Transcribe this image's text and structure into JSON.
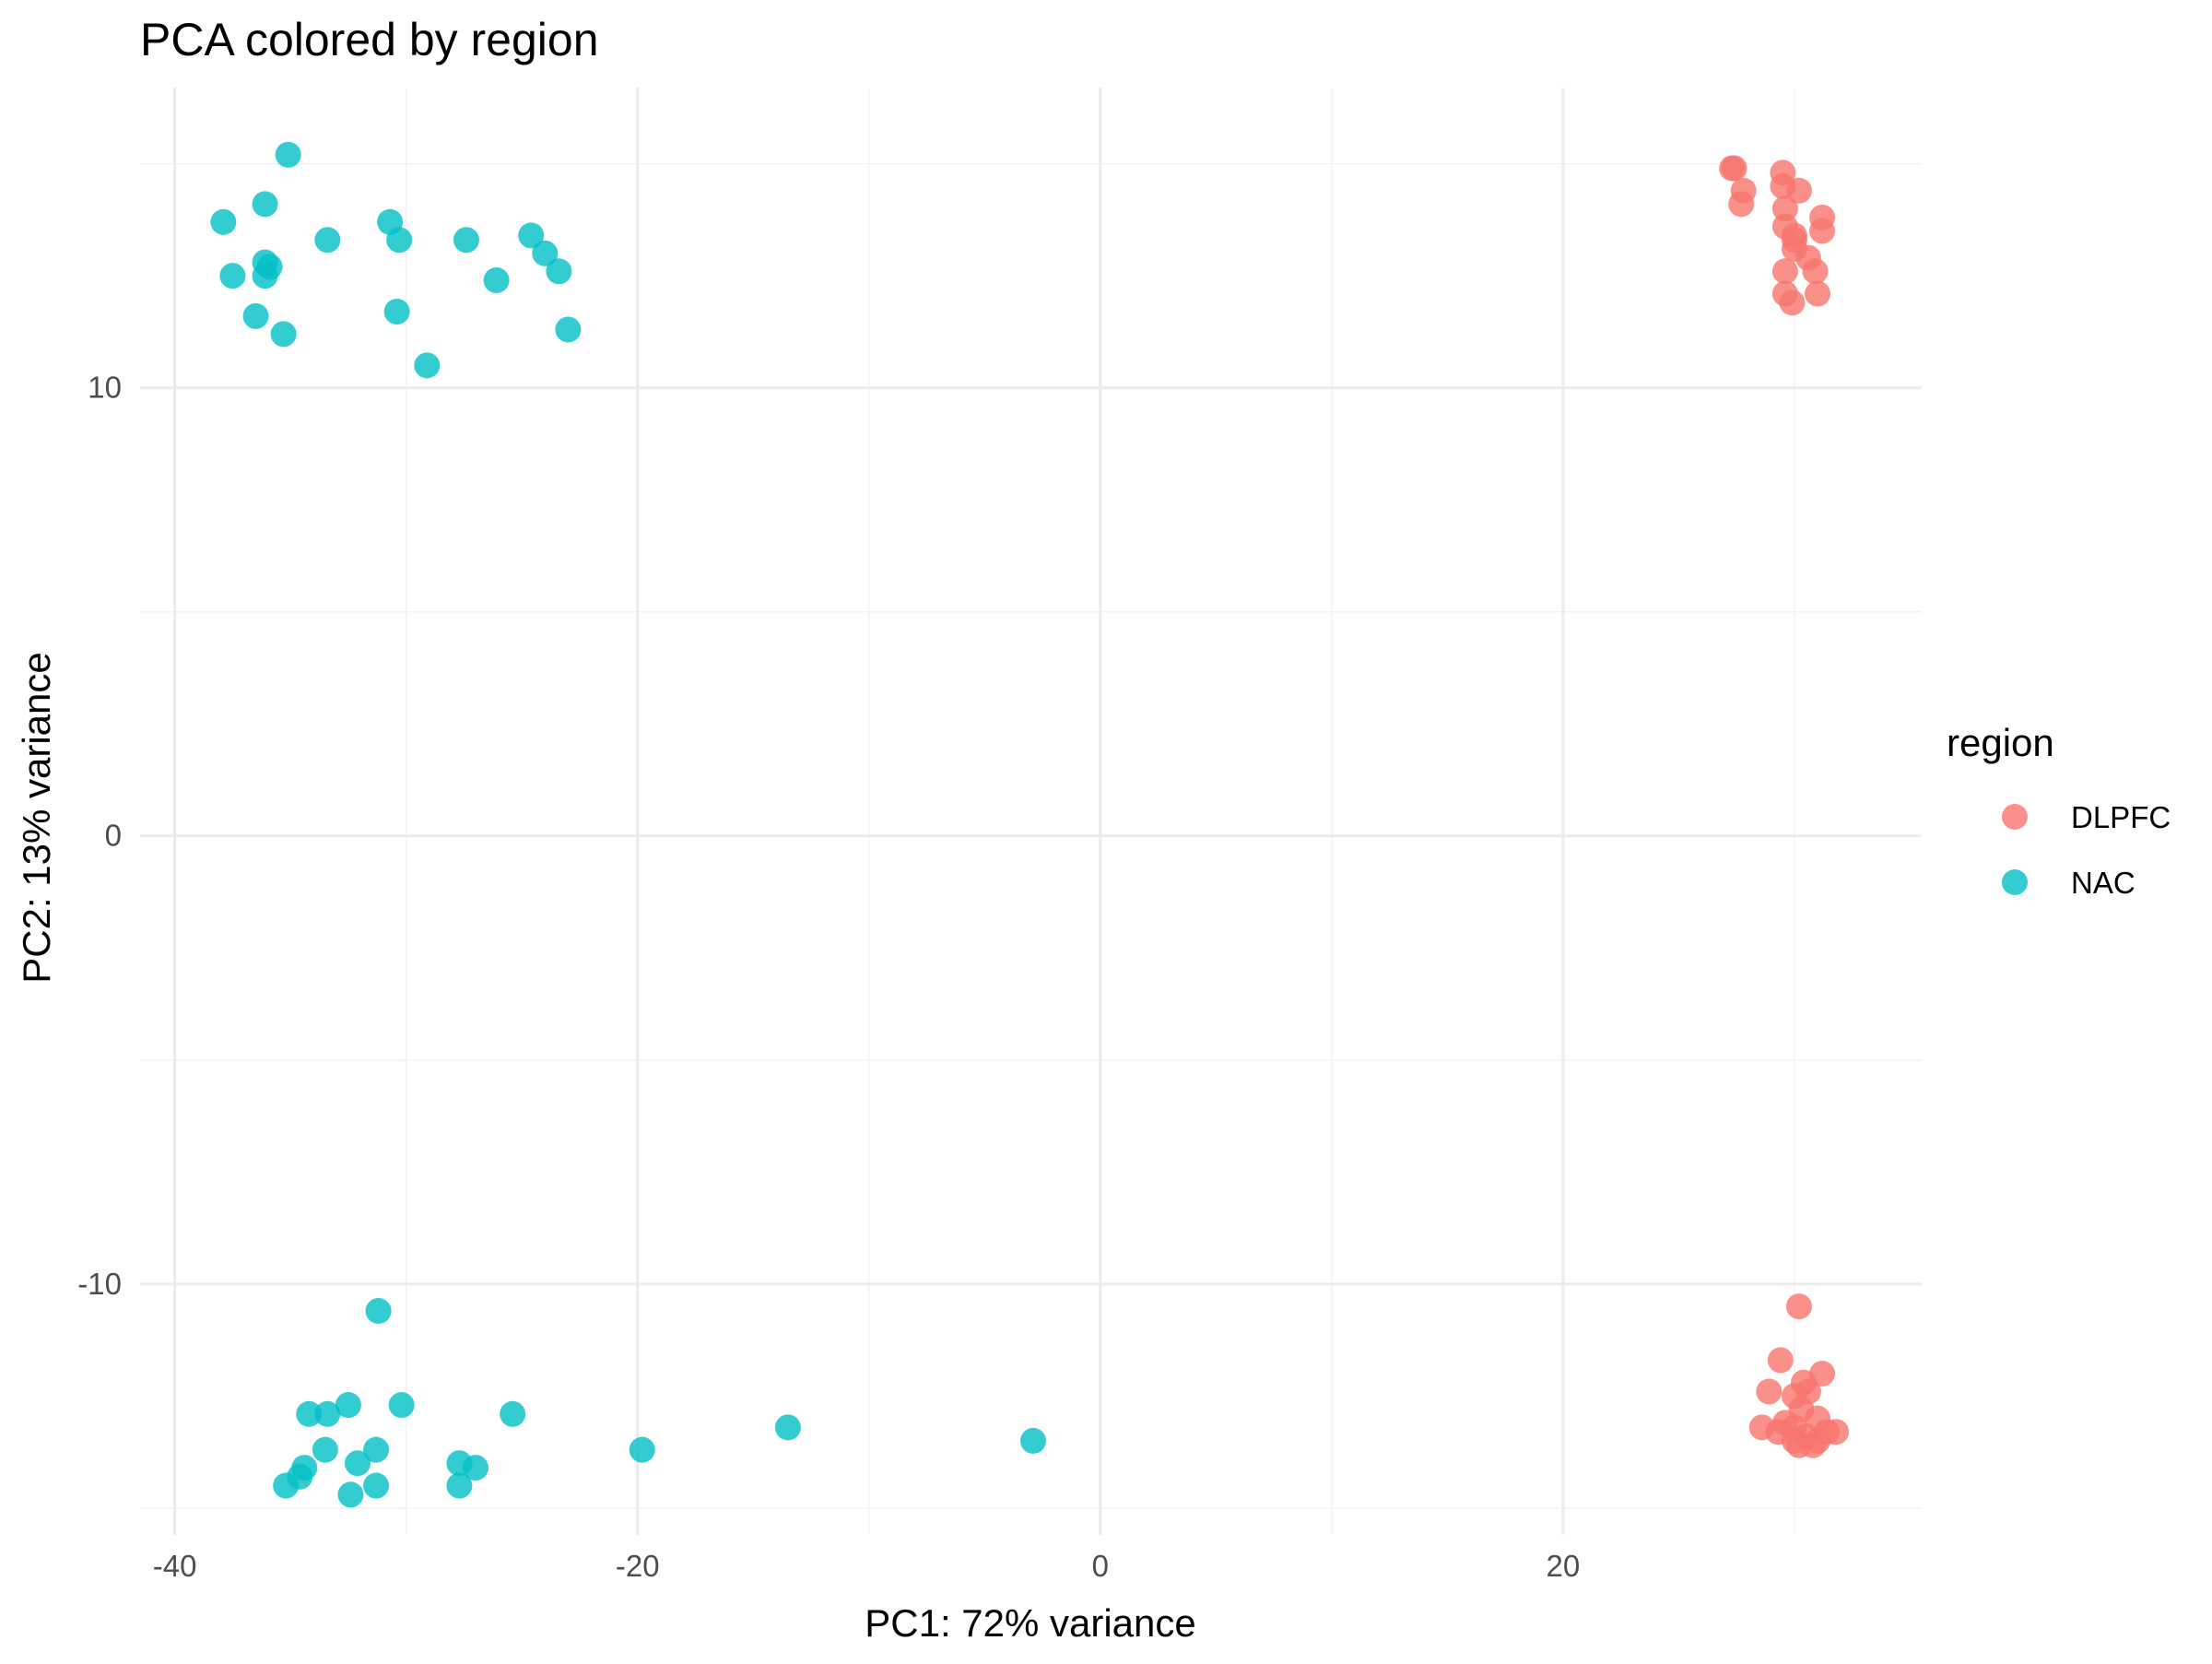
{
  "chart_data": {
    "type": "scatter",
    "title": "PCA colored by region",
    "xlabel": "PC1: 72% variance",
    "ylabel": "PC2: 13% variance",
    "xlim": [
      -41.5,
      35.5
    ],
    "ylim": [
      -15.6,
      16.7
    ],
    "x_ticks": [
      -40,
      -20,
      0,
      20
    ],
    "x_tick_labels": [
      "-40",
      "-20",
      "0",
      "20"
    ],
    "y_ticks": [
      -10,
      0,
      10
    ],
    "y_tick_labels": [
      "-10",
      "0",
      "10"
    ],
    "x_minor_ticks": [
      -30,
      -10,
      10,
      30
    ],
    "y_minor_ticks": [
      -15,
      -5,
      5,
      15
    ],
    "grid": true,
    "legend": {
      "title": "region",
      "position": "right",
      "entries": [
        "DLPFC",
        "NAC"
      ]
    },
    "series": [
      {
        "name": "DLPFC",
        "color": "#F8766D",
        "points": [
          [
            27.3,
            14.9
          ],
          [
            27.4,
            14.9
          ],
          [
            27.8,
            14.4
          ],
          [
            27.7,
            14.1
          ],
          [
            29.5,
            14.8
          ],
          [
            29.5,
            14.5
          ],
          [
            30.2,
            14.4
          ],
          [
            29.6,
            14.0
          ],
          [
            31.2,
            13.8
          ],
          [
            29.6,
            13.6
          ],
          [
            31.2,
            13.5
          ],
          [
            30.0,
            13.4
          ],
          [
            30.0,
            13.3
          ],
          [
            30.0,
            13.1
          ],
          [
            30.6,
            12.9
          ],
          [
            29.6,
            12.6
          ],
          [
            30.9,
            12.6
          ],
          [
            29.6,
            12.1
          ],
          [
            31.0,
            12.1
          ],
          [
            29.9,
            11.9
          ],
          [
            30.2,
            -10.5
          ],
          [
            29.4,
            -11.7
          ],
          [
            31.2,
            -12.0
          ],
          [
            30.4,
            -12.2
          ],
          [
            28.9,
            -12.4
          ],
          [
            30.0,
            -12.5
          ],
          [
            30.6,
            -12.4
          ],
          [
            30.3,
            -12.8
          ],
          [
            28.6,
            -13.2
          ],
          [
            29.6,
            -13.1
          ],
          [
            29.3,
            -13.3
          ],
          [
            30.0,
            -13.2
          ],
          [
            31.0,
            -13.0
          ],
          [
            31.4,
            -13.3
          ],
          [
            31.8,
            -13.3
          ],
          [
            30.5,
            -13.4
          ],
          [
            30.0,
            -13.5
          ],
          [
            31.0,
            -13.5
          ],
          [
            30.2,
            -13.6
          ],
          [
            30.8,
            -13.6
          ]
        ]
      },
      {
        "name": "NAC",
        "color": "#00BFC4",
        "points": [
          [
            -35.1,
            15.2
          ],
          [
            -36.1,
            14.1
          ],
          [
            -37.9,
            13.7
          ],
          [
            -30.7,
            13.7
          ],
          [
            -33.4,
            13.3
          ],
          [
            -30.3,
            13.3
          ],
          [
            -27.4,
            13.3
          ],
          [
            -24.6,
            13.4
          ],
          [
            -24.0,
            13.0
          ],
          [
            -36.1,
            12.8
          ],
          [
            -35.9,
            12.7
          ],
          [
            -37.5,
            12.5
          ],
          [
            -36.1,
            12.5
          ],
          [
            -23.4,
            12.6
          ],
          [
            -26.1,
            12.4
          ],
          [
            -36.5,
            11.6
          ],
          [
            -30.4,
            11.7
          ],
          [
            -35.3,
            11.2
          ],
          [
            -23.0,
            11.3
          ],
          [
            -29.1,
            10.5
          ],
          [
            -31.2,
            -10.6
          ],
          [
            -30.2,
            -12.7
          ],
          [
            -32.5,
            -12.7
          ],
          [
            -33.4,
            -12.9
          ],
          [
            -34.2,
            -12.9
          ],
          [
            -25.4,
            -12.9
          ],
          [
            -13.5,
            -13.2
          ],
          [
            -31.3,
            -13.7
          ],
          [
            -33.5,
            -13.7
          ],
          [
            -19.8,
            -13.7
          ],
          [
            -2.9,
            -13.5
          ],
          [
            -32.1,
            -14.0
          ],
          [
            -34.4,
            -14.1
          ],
          [
            -34.6,
            -14.3
          ],
          [
            -27.7,
            -14.0
          ],
          [
            -27.0,
            -14.1
          ],
          [
            -35.2,
            -14.5
          ],
          [
            -31.3,
            -14.5
          ],
          [
            -27.7,
            -14.5
          ],
          [
            -32.4,
            -14.7
          ]
        ]
      }
    ]
  }
}
